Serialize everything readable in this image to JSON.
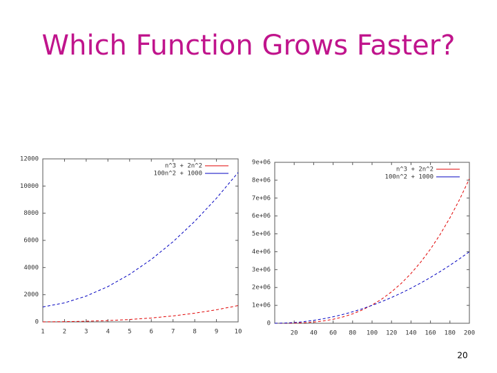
{
  "title": "Which Function Grows Faster?",
  "page_number": "20",
  "chart_data": [
    {
      "type": "line",
      "x": [
        1,
        2,
        3,
        4,
        5,
        6,
        7,
        8,
        9,
        10
      ],
      "xlim": [
        1,
        10
      ],
      "xticks": [
        1,
        2,
        3,
        4,
        5,
        6,
        7,
        8,
        9,
        10
      ],
      "ylim": [
        0,
        12000
      ],
      "yticks": [
        0,
        2000,
        4000,
        6000,
        8000,
        10000,
        12000
      ],
      "legend": "upper right",
      "series": [
        {
          "name": "n^3 + 2n^2",
          "color": "#e00000",
          "values": [
            3,
            16,
            45,
            96,
            175,
            288,
            441,
            640,
            891,
            1200
          ]
        },
        {
          "name": "100n^2 + 1000",
          "color": "#0000c0",
          "values": [
            1100,
            1400,
            1900,
            2600,
            3500,
            4600,
            5900,
            7400,
            9100,
            11000
          ]
        }
      ]
    },
    {
      "type": "line",
      "x": [
        0,
        10,
        20,
        30,
        40,
        50,
        60,
        70,
        80,
        90,
        100,
        110,
        120,
        130,
        140,
        150,
        160,
        170,
        180,
        190,
        200
      ],
      "xlim": [
        0,
        200
      ],
      "xticks": [
        20,
        40,
        60,
        80,
        100,
        120,
        140,
        160,
        180,
        200
      ],
      "ylim": [
        0,
        9000000
      ],
      "yticks": [
        0,
        {
          "value": 1000000,
          "label": "1e+06"
        },
        {
          "value": 2000000,
          "label": "2e+06"
        },
        {
          "value": 3000000,
          "label": "3e+06"
        },
        {
          "value": 4000000,
          "label": "4e+06"
        },
        {
          "value": 5000000,
          "label": "5e+06"
        },
        {
          "value": 6000000,
          "label": "6e+06"
        },
        {
          "value": 7000000,
          "label": "7e+06"
        },
        {
          "value": 8000000,
          "label": "8e+06"
        },
        {
          "value": 9000000,
          "label": "9e+06"
        }
      ],
      "legend": "upper right",
      "series": [
        {
          "name": "n^3 + 2n^2",
          "color": "#e00000",
          "values": [
            0,
            1200,
            8800,
            28800,
            67200,
            130000,
            223200,
            352800,
            524800,
            745200,
            1020000,
            1355200,
            1756800,
            2230800,
            2783200,
            3420000,
            4147200,
            4970800,
            5896800,
            6931200,
            8080000
          ]
        },
        {
          "name": "100n^2 + 1000",
          "color": "#0000c0",
          "values": [
            1000,
            11000,
            41000,
            91000,
            161000,
            251000,
            361000,
            491000,
            641000,
            811000,
            1001000,
            1211000,
            1441000,
            1691000,
            1961000,
            2251000,
            2561000,
            2891000,
            3241000,
            3611000,
            4001000
          ]
        }
      ]
    }
  ]
}
